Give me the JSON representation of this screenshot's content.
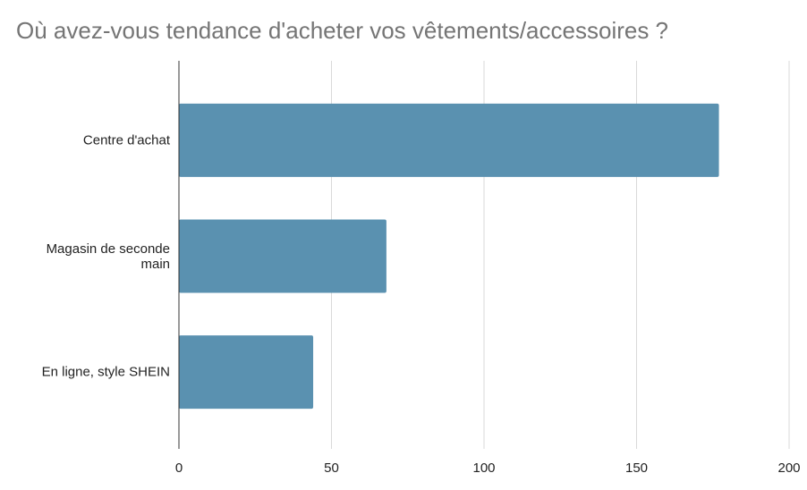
{
  "chart_data": {
    "type": "barh",
    "title": "Où avez-vous tendance d'acheter vos vêtements/accessoires ?",
    "categories": [
      "Centre d'achat",
      "Magasin de seconde main",
      "En ligne, style SHEIN"
    ],
    "values": [
      177,
      68,
      44
    ],
    "color": "#5a91b0",
    "xlim": [
      0,
      200
    ],
    "xticks": [
      0,
      50,
      100,
      150,
      200
    ],
    "grid": true
  }
}
